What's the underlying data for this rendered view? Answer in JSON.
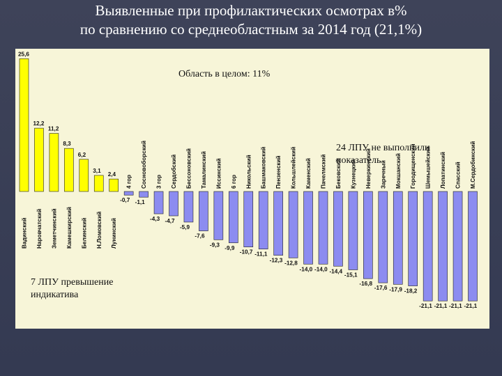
{
  "slide": {
    "title_line1": "Выявленные при профилактических осмотрах в%",
    "title_line2": "по сравнению со среднеобластным за 2014 год (21,1%)"
  },
  "annotations": {
    "region_total": "Область в целом: 11%",
    "fail_note": "24 ЛПУ не выполнили показатель",
    "exceed_note": "7 ЛПУ превышение индикатива"
  },
  "colors": {
    "positive": "#ffff00",
    "negative": "#8c8cf0",
    "bar_border": "#222222",
    "panel": "#f7f5d8"
  },
  "chart_data": {
    "type": "bar",
    "title": "",
    "xlabel": "",
    "ylabel": "",
    "ylim": [
      -23,
      27
    ],
    "grid": false,
    "legend": "none",
    "categories": [
      "Вадинский",
      "Наровчатский",
      "Земетчинский",
      "Камешкирский",
      "Белинский",
      "Н.Ломовский",
      "Лунинский",
      "4 гор",
      "Сосновоборский",
      "3 гор",
      "Сердобский",
      "Бессоновский",
      "Тамалинский",
      "Иссинский",
      "6 гор",
      "Никольский",
      "Башмаковский",
      "Пензенский",
      "Кольшлейский",
      "Каменский",
      "Пачелмский",
      "Бековский",
      "Кузнецкий",
      "Неверкинский",
      "Заречный",
      "Мокшанский",
      "Городищенский",
      "Шемышейский",
      "Лопатинский",
      "Спасский",
      "М.Сердобинский"
    ],
    "values": [
      25.6,
      12.2,
      11.2,
      8.3,
      6.2,
      3.1,
      2.4,
      -0.7,
      -1.1,
      -4.3,
      -4.7,
      -5.9,
      -7.6,
      -9.3,
      -9.9,
      -10.7,
      -11.1,
      -12.3,
      -12.8,
      -14.0,
      -14.0,
      -14.4,
      -15.1,
      -16.8,
      -17.6,
      -17.9,
      -18.2,
      -21.1,
      -21.1,
      -21.1,
      -21.1
    ],
    "value_labels": [
      "25,6",
      "12,2",
      "11,2",
      "8,3",
      "6,2",
      "3,1",
      "2,4",
      "-0,7",
      "-1,1",
      "-4,3",
      "-4,7",
      "-5,9",
      "-7,6",
      "-9,3",
      "-9,9",
      "-10,7",
      "-11,1",
      "-12,3",
      "-12,8",
      "-14,0",
      "-14,0",
      "-14,4",
      "-15,1",
      "-16,8",
      "-17,6",
      "-17,9",
      "-18,2",
      "-21,1",
      "-21,1",
      "-21,1",
      "-21,1"
    ]
  }
}
